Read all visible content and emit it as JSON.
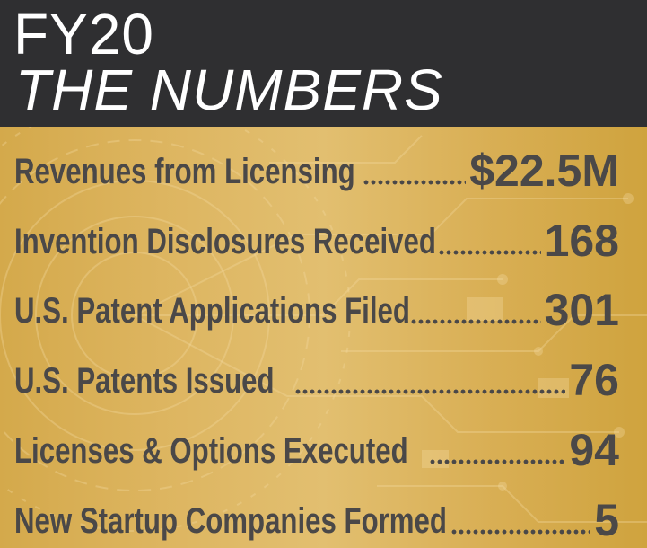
{
  "header": {
    "title_line1": "FY20",
    "title_line2": "THE NUMBERS"
  },
  "stats": [
    {
      "label": "Revenues from Licensing",
      "value": "$22.5M"
    },
    {
      "label": "Invention Disclosures Received",
      "value": "168"
    },
    {
      "label": "U.S. Patent Applications Filed",
      "value": "301"
    },
    {
      "label": "U.S. Patents Issued",
      "value": "76"
    },
    {
      "label": "Licenses & Options Executed",
      "value": "94"
    },
    {
      "label": "New Startup Companies Formed",
      "value": "5"
    }
  ],
  "colors": {
    "header_bg": "#2f2f31",
    "header_text": "#ffffff",
    "panel_gold": "#ddb560",
    "stat_text": "#4a4848"
  }
}
